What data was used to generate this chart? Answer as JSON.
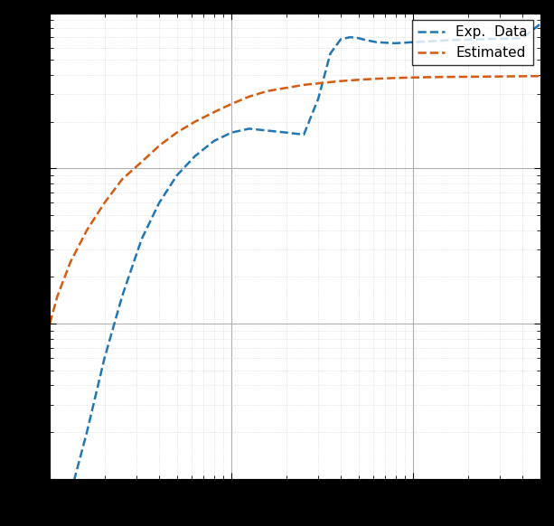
{
  "title": "",
  "xlabel": "",
  "ylabel": "",
  "legend_labels": [
    "Exp.  Data",
    "Estimated"
  ],
  "line_colors": [
    "#1f77b4",
    "#d45b10"
  ],
  "line_style": "--",
  "line_width": 1.8,
  "xlim": [
    1,
    500
  ],
  "ylim": [
    1e-08,
    1e-05
  ],
  "grid_major_color": "#b0b0b0",
  "grid_minor_color": "#d0d0d0",
  "background_color": "#ffffff",
  "exp_x": [
    1.0,
    1.1,
    1.3,
    1.6,
    2.0,
    2.5,
    3.2,
    4.0,
    5.0,
    6.3,
    8.0,
    10.0,
    12.5,
    15.8,
    20.0,
    25.0,
    30.0,
    35.0,
    40.0,
    45.0,
    50.0,
    55.0,
    63.0,
    79.0,
    100.0,
    126.0,
    158.0,
    200.0,
    251.0,
    316.0,
    398.0,
    500.0
  ],
  "exp_y": [
    2e-09,
    4e-09,
    8e-09,
    2e-08,
    6e-08,
    1.5e-07,
    3.5e-07,
    6e-07,
    9e-07,
    1.2e-06,
    1.5e-06,
    1.7e-06,
    1.8e-06,
    1.75e-06,
    1.7e-06,
    1.65e-06,
    2.8e-06,
    5.5e-06,
    6.8e-06,
    7e-06,
    6.9e-06,
    6.7e-06,
    6.5e-06,
    6.4e-06,
    6.5e-06,
    6.6e-06,
    6.7e-06,
    6.75e-06,
    6.8e-06,
    6.85e-06,
    6.9e-06,
    8.5e-06
  ],
  "est_x": [
    1.0,
    1.1,
    1.3,
    1.6,
    2.0,
    2.5,
    3.2,
    4.0,
    5.0,
    6.3,
    8.0,
    10.0,
    12.5,
    15.8,
    20.0,
    25.0,
    31.6,
    39.8,
    50.0,
    63.0,
    79.0,
    100.0,
    126.0,
    158.0,
    200.0,
    251.0,
    316.0,
    398.0,
    500.0
  ],
  "est_y": [
    1e-07,
    1.5e-07,
    2.5e-07,
    4e-07,
    6e-07,
    8.5e-07,
    1.1e-06,
    1.4e-06,
    1.7e-06,
    2e-06,
    2.3e-06,
    2.6e-06,
    2.9e-06,
    3.15e-06,
    3.3e-06,
    3.45e-06,
    3.55e-06,
    3.65e-06,
    3.72e-06,
    3.78e-06,
    3.82e-06,
    3.85e-06,
    3.87e-06,
    3.88e-06,
    3.89e-06,
    3.9e-06,
    3.91e-06,
    3.92e-06,
    3.93e-06
  ]
}
